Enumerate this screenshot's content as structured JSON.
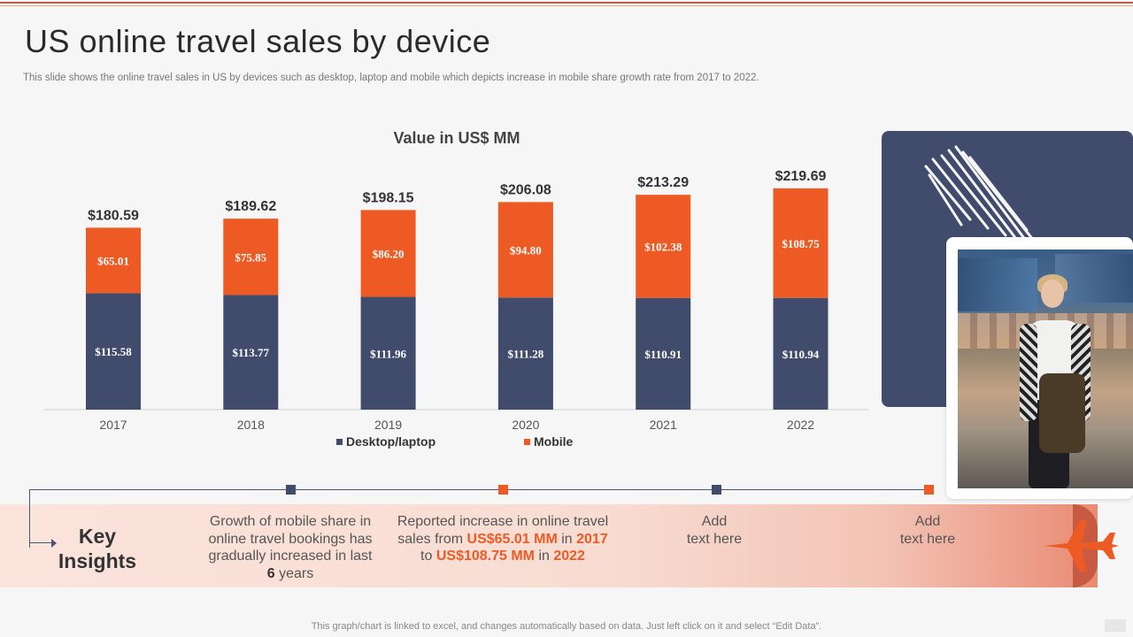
{
  "slide": {
    "title": "US online travel sales by device",
    "subtitle": "This slide shows the online travel sales in US by devices such as desktop, laptop and mobile which depicts increase in mobile share growth rate from 2017 to 2022.",
    "footnote": "This graph/chart is linked to excel,  and changes automatically based on data. Just left click on it and select “Edit Data”."
  },
  "colors": {
    "desktop": "#414c6c",
    "mobile": "#ee5a24",
    "accent": "#ee5a24"
  },
  "chart_data": {
    "type": "bar",
    "stacked": true,
    "title": "Value in US$ MM",
    "categories": [
      "2017",
      "2018",
      "2019",
      "2020",
      "2021",
      "2022"
    ],
    "series": [
      {
        "name": "Desktop/laptop",
        "values": [
          115.58,
          113.77,
          111.96,
          111.28,
          110.91,
          110.94
        ],
        "labels": [
          "$115.58",
          "$113.77",
          "$111.96",
          "$111.28",
          "$110.91",
          "$110.94"
        ]
      },
      {
        "name": "Mobile",
        "values": [
          65.01,
          75.85,
          86.2,
          94.8,
          102.38,
          108.75
        ],
        "labels": [
          "$65.01",
          "$75.85",
          "$86.20",
          "$94.80",
          "$102.38",
          "$108.75"
        ]
      }
    ],
    "totals": [
      "$180.59",
      "$189.62",
      "$198.15",
      "$206.08",
      "$213.29",
      "$219.69"
    ],
    "xlabel": "",
    "ylabel": "",
    "ylim": [
      0,
      230
    ],
    "legend": "bottom"
  },
  "insights": {
    "heading_line1": "Key",
    "heading_line2": "Insights",
    "items": [
      {
        "line1": "Growth of mobile share in",
        "line2": "online travel bookings has",
        "line3": "gradually increased in last",
        "num": "6",
        "line4_tail": " years"
      },
      {
        "line1": "Reported increase in online travel",
        "line2a": "sales from ",
        "v1": "US$65.01 MM",
        "mid": " in ",
        "y1": "2017",
        "line3a": "to ",
        "v2": "US$108.75 MM",
        "mid2": " in ",
        "y2": "2022"
      },
      {
        "line1": "Add",
        "line2": "text here"
      },
      {
        "line1": "Add",
        "line2": "text here"
      }
    ]
  },
  "icons": {
    "plane": "airplane-icon",
    "photo": "traveler-photo"
  }
}
